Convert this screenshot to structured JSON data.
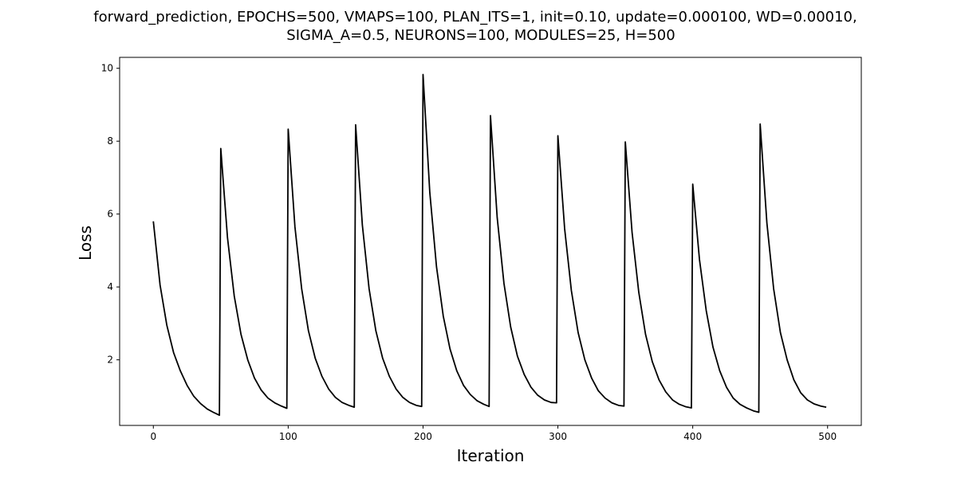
{
  "chart_data": {
    "type": "line",
    "title_line1": "forward_prediction, EPOCHS=500, VMAPS=100, PLAN_ITS=1, init=0.10, update=0.000100, WD=0.00010,",
    "title_line2": "SIGMA_A=0.5, NEURONS=100, MODULES=25, H=500",
    "xlabel": "Iteration",
    "ylabel": "Loss",
    "xlim": [
      -25,
      525
    ],
    "ylim": [
      0.2,
      10.3
    ],
    "xticks": [
      0,
      100,
      200,
      300,
      400,
      500
    ],
    "yticks": [
      2,
      4,
      6,
      8,
      10
    ],
    "grid": false,
    "line_color": "#000000",
    "series": [
      {
        "x": [
          0,
          5,
          10,
          15,
          20,
          25,
          30,
          35,
          40,
          45,
          49,
          50,
          55,
          60,
          65,
          70,
          75,
          80,
          85,
          90,
          95,
          99,
          100,
          105,
          110,
          115,
          120,
          125,
          130,
          135,
          140,
          145,
          149,
          150,
          155,
          160,
          165,
          170,
          175,
          180,
          185,
          190,
          195,
          199,
          200,
          205,
          210,
          215,
          220,
          225,
          230,
          235,
          240,
          245,
          249,
          250,
          255,
          260,
          265,
          270,
          275,
          280,
          285,
          290,
          295,
          299,
          300,
          305,
          310,
          315,
          320,
          325,
          330,
          335,
          340,
          345,
          349,
          350,
          355,
          360,
          365,
          370,
          375,
          380,
          385,
          390,
          395,
          399,
          400,
          405,
          410,
          415,
          420,
          425,
          430,
          435,
          440,
          445,
          449,
          450,
          455,
          460,
          465,
          470,
          475,
          480,
          485,
          490,
          495,
          499
        ],
        "y": [
          5.8,
          4.05,
          2.95,
          2.2,
          1.7,
          1.3,
          1.0,
          0.8,
          0.65,
          0.55,
          0.48,
          7.8,
          5.35,
          3.75,
          2.7,
          2.0,
          1.5,
          1.17,
          0.95,
          0.82,
          0.73,
          0.67,
          8.33,
          5.65,
          3.95,
          2.8,
          2.05,
          1.55,
          1.2,
          0.97,
          0.83,
          0.75,
          0.7,
          8.45,
          5.7,
          3.95,
          2.8,
          2.05,
          1.55,
          1.2,
          0.97,
          0.83,
          0.75,
          0.72,
          9.83,
          6.6,
          4.55,
          3.2,
          2.3,
          1.7,
          1.3,
          1.05,
          0.88,
          0.78,
          0.72,
          8.7,
          5.9,
          4.1,
          2.9,
          2.1,
          1.6,
          1.25,
          1.03,
          0.9,
          0.83,
          0.82,
          8.15,
          5.6,
          3.9,
          2.75,
          2.0,
          1.5,
          1.15,
          0.95,
          0.82,
          0.75,
          0.73,
          7.98,
          5.5,
          3.85,
          2.7,
          1.95,
          1.45,
          1.12,
          0.9,
          0.78,
          0.71,
          0.68,
          6.82,
          4.75,
          3.35,
          2.35,
          1.7,
          1.25,
          0.95,
          0.78,
          0.68,
          0.6,
          0.56,
          8.47,
          5.75,
          3.95,
          2.75,
          2.0,
          1.45,
          1.1,
          0.9,
          0.79,
          0.73,
          0.7
        ]
      }
    ]
  }
}
